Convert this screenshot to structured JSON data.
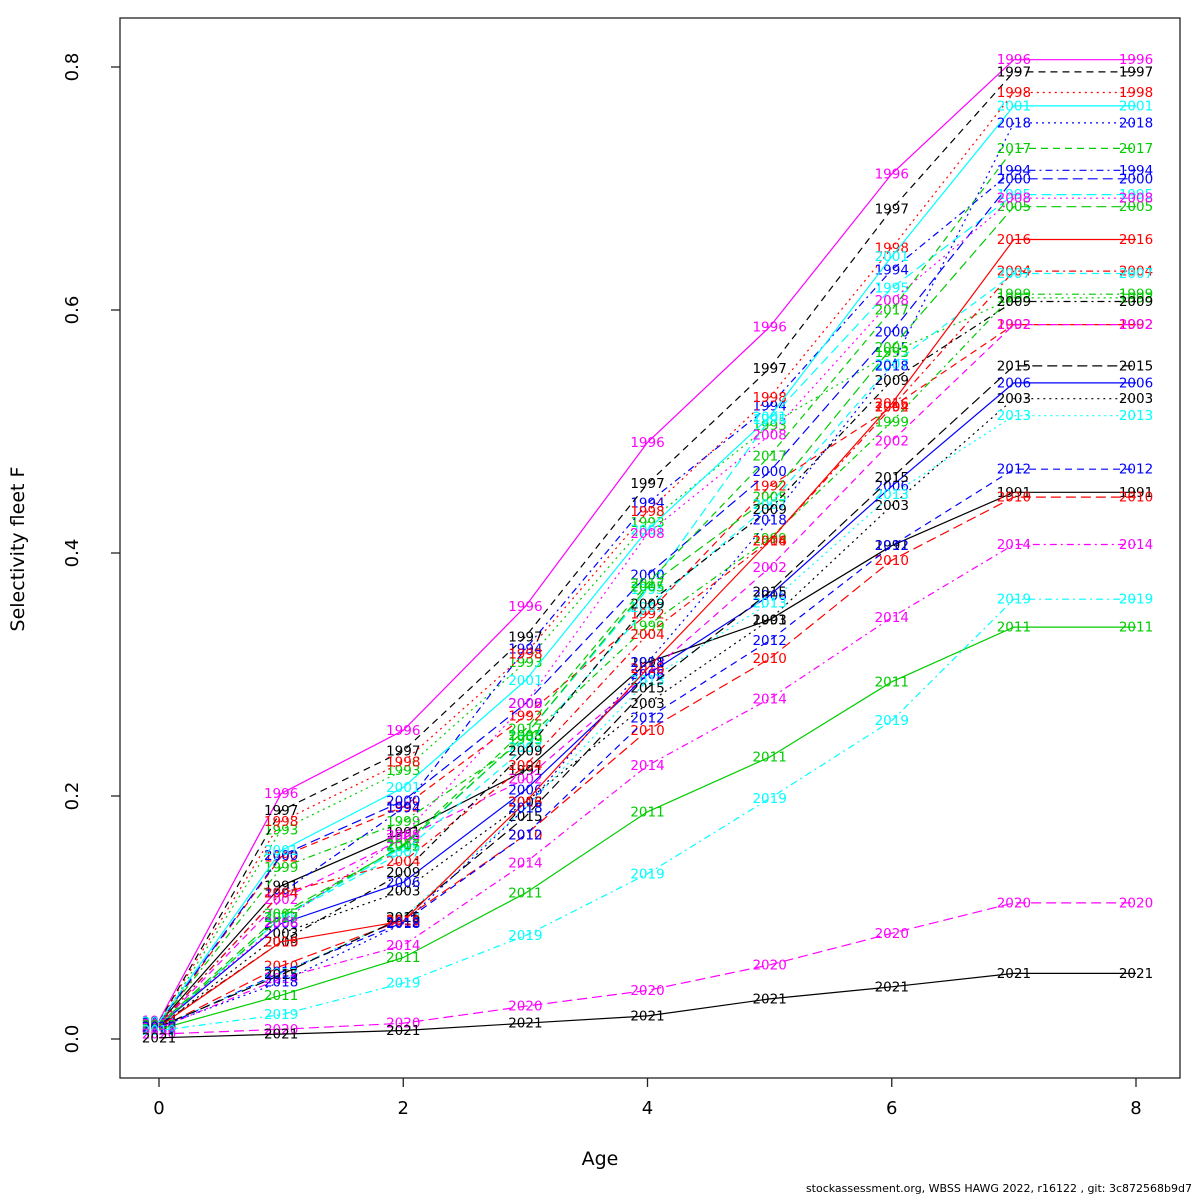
{
  "footer": "stockassessment.org, WBSS HAWG 2022, r16122 , git: 3c872568b9d7",
  "chart_data": {
    "type": "line",
    "title": "",
    "xlabel": "Age",
    "ylabel": "Selectivity fleet F",
    "x": [
      0,
      1,
      2,
      3,
      4,
      5,
      6,
      7,
      8
    ],
    "xticks": [
      0,
      2,
      4,
      6,
      8
    ],
    "yticks": [
      "0.0",
      "0.2",
      "0.4",
      "0.6",
      "0.8"
    ],
    "xlim": [
      0,
      8
    ],
    "ylim": [
      0.0,
      0.8
    ],
    "grid": false,
    "legend_position": "labels-on-lines",
    "label_style": "year label drawn at every age point and repeated at right margin (age 7 value held flat to age 8)",
    "series": [
      {
        "name": "1991",
        "color": "#000000",
        "dash": "solid",
        "values": [
          0.013,
          0.126,
          0.17,
          0.221,
          0.31,
          0.345,
          0.406,
          0.45,
          0.45
        ]
      },
      {
        "name": "1992",
        "color": "#FF0000",
        "dash": "dashed",
        "values": [
          0.012,
          0.15,
          0.191,
          0.266,
          0.35,
          0.455,
          0.52,
          0.588,
          0.588
        ]
      },
      {
        "name": "1993",
        "color": "#00CC00",
        "dash": "dotted",
        "values": [
          0.012,
          0.172,
          0.221,
          0.31,
          0.425,
          0.505,
          0.565,
          0.61,
          0.61
        ]
      },
      {
        "name": "1994",
        "color": "#0000FF",
        "dash": "dotdash",
        "values": [
          0.012,
          0.12,
          0.19,
          0.321,
          0.441,
          0.521,
          0.633,
          0.715,
          0.715
        ]
      },
      {
        "name": "1995",
        "color": "#00FFFF",
        "dash": "longdash",
        "values": [
          0.011,
          0.1,
          0.158,
          0.25,
          0.37,
          0.51,
          0.618,
          0.695,
          0.695
        ]
      },
      {
        "name": "1996",
        "color": "#FF00FF",
        "dash": "solid",
        "values": [
          0.015,
          0.202,
          0.254,
          0.356,
          0.491,
          0.586,
          0.712,
          0.806,
          0.806
        ]
      },
      {
        "name": "1997",
        "color": "#000000",
        "dash": "dashed",
        "values": [
          0.014,
          0.188,
          0.237,
          0.331,
          0.457,
          0.552,
          0.683,
          0.796,
          0.796
        ]
      },
      {
        "name": "1998",
        "color": "#FF0000",
        "dash": "dotted",
        "values": [
          0.014,
          0.179,
          0.228,
          0.317,
          0.434,
          0.528,
          0.651,
          0.779,
          0.779
        ]
      },
      {
        "name": "1999",
        "color": "#00CC00",
        "dash": "dotdash",
        "values": [
          0.013,
          0.141,
          0.179,
          0.246,
          0.34,
          0.412,
          0.508,
          0.613,
          0.613
        ]
      },
      {
        "name": "2000",
        "color": "#0000FF",
        "dash": "longdash",
        "values": [
          0.013,
          0.151,
          0.196,
          0.276,
          0.382,
          0.467,
          0.582,
          0.708,
          0.708
        ]
      },
      {
        "name": "2001",
        "color": "#00FFFF",
        "dash": "solid",
        "values": [
          0.014,
          0.155,
          0.207,
          0.295,
          0.419,
          0.512,
          0.644,
          0.768,
          0.768
        ]
      },
      {
        "name": "2002",
        "color": "#FF00FF",
        "dash": "dashed",
        "values": [
          0.011,
          0.115,
          0.165,
          0.214,
          0.3,
          0.388,
          0.492,
          0.588,
          0.588
        ]
      },
      {
        "name": "2003",
        "color": "#000000",
        "dash": "dotted",
        "values": [
          0.01,
          0.087,
          0.122,
          0.195,
          0.276,
          0.345,
          0.439,
          0.527,
          0.527
        ]
      },
      {
        "name": "2004",
        "color": "#FF0000",
        "dash": "dotdash",
        "values": [
          0.012,
          0.12,
          0.146,
          0.225,
          0.333,
          0.41,
          0.52,
          0.632,
          0.632
        ]
      },
      {
        "name": "2005",
        "color": "#00CC00",
        "dash": "longdash",
        "values": [
          0.012,
          0.103,
          0.159,
          0.25,
          0.372,
          0.446,
          0.569,
          0.685,
          0.685
        ]
      },
      {
        "name": "2006",
        "color": "#0000FF",
        "dash": "solid",
        "values": [
          0.011,
          0.095,
          0.129,
          0.205,
          0.3,
          0.365,
          0.455,
          0.54,
          0.54
        ]
      },
      {
        "name": "2007",
        "color": "#00FFFF",
        "dash": "dashed",
        "values": [
          0.011,
          0.1,
          0.154,
          0.24,
          0.355,
          0.44,
          0.555,
          0.63,
          0.63
        ]
      },
      {
        "name": "2008",
        "color": "#FF00FF",
        "dash": "dotted",
        "values": [
          0.012,
          0.096,
          0.168,
          0.276,
          0.416,
          0.497,
          0.608,
          0.692,
          0.692
        ]
      },
      {
        "name": "2009",
        "color": "#000000",
        "dash": "dotdash",
        "values": [
          0.011,
          0.08,
          0.137,
          0.237,
          0.358,
          0.436,
          0.542,
          0.607,
          0.607
        ]
      },
      {
        "name": "2010",
        "color": "#FF0000",
        "dash": "longdash",
        "values": [
          0.009,
          0.06,
          0.098,
          0.168,
          0.254,
          0.313,
          0.394,
          0.446,
          0.446
        ]
      },
      {
        "name": "2011",
        "color": "#00CC00",
        "dash": "solid",
        "values": [
          0.008,
          0.036,
          0.067,
          0.12,
          0.187,
          0.232,
          0.294,
          0.339,
          0.339
        ]
      },
      {
        "name": "2012",
        "color": "#0000FF",
        "dash": "dashed",
        "values": [
          0.009,
          0.055,
          0.096,
          0.168,
          0.264,
          0.328,
          0.406,
          0.469,
          0.469
        ]
      },
      {
        "name": "2013",
        "color": "#00FFFF",
        "dash": "dotted",
        "values": [
          0.01,
          0.054,
          0.1,
          0.19,
          0.295,
          0.359,
          0.448,
          0.513,
          0.513
        ]
      },
      {
        "name": "2014",
        "color": "#FF00FF",
        "dash": "dotdash",
        "values": [
          0.009,
          0.05,
          0.077,
          0.145,
          0.225,
          0.28,
          0.347,
          0.407,
          0.407
        ]
      },
      {
        "name": "2015",
        "color": "#000000",
        "dash": "longdash",
        "values": [
          0.01,
          0.053,
          0.1,
          0.183,
          0.289,
          0.368,
          0.462,
          0.554,
          0.554
        ]
      },
      {
        "name": "2016",
        "color": "#FF0000",
        "dash": "solid",
        "values": [
          0.01,
          0.08,
          0.097,
          0.195,
          0.305,
          0.41,
          0.523,
          0.658,
          0.658
        ]
      },
      {
        "name": "2017",
        "color": "#00CC00",
        "dash": "dashed",
        "values": [
          0.011,
          0.1,
          0.16,
          0.255,
          0.375,
          0.48,
          0.6,
          0.733,
          0.733
        ]
      },
      {
        "name": "2018",
        "color": "#0000FF",
        "dash": "dotted",
        "values": [
          0.01,
          0.047,
          0.095,
          0.19,
          0.31,
          0.427,
          0.554,
          0.754,
          0.754
        ]
      },
      {
        "name": "2019",
        "color": "#00FFFF",
        "dash": "dotdash",
        "values": [
          0.007,
          0.02,
          0.046,
          0.085,
          0.136,
          0.198,
          0.262,
          0.362,
          0.362
        ]
      },
      {
        "name": "2020",
        "color": "#FF00FF",
        "dash": "longdash",
        "values": [
          0.004,
          0.008,
          0.013,
          0.027,
          0.04,
          0.061,
          0.087,
          0.112,
          0.112
        ]
      },
      {
        "name": "2021",
        "color": "#000000",
        "dash": "solid",
        "values": [
          0.001,
          0.004,
          0.007,
          0.013,
          0.019,
          0.033,
          0.043,
          0.054,
          0.054
        ]
      }
    ]
  }
}
